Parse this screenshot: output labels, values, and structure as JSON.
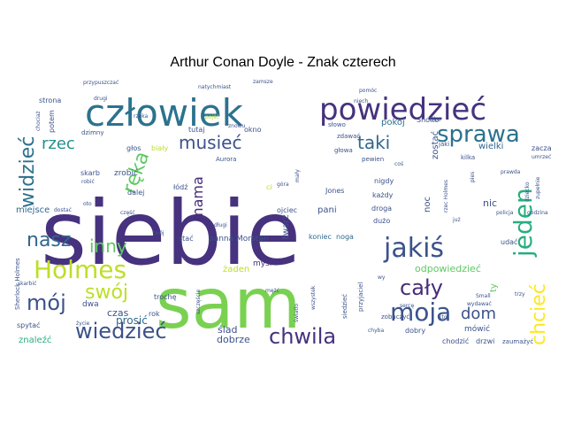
{
  "chart_data": {
    "type": "wordcloud",
    "title": "Arthur Conan Doyle - Znak czterech",
    "words": [
      {
        "text": "siebie",
        "size": 100,
        "color": "#46327e"
      },
      {
        "text": "sam",
        "size": 78,
        "color": "#7ad151"
      },
      {
        "text": "człowiek",
        "size": 42,
        "color": "#2c728e"
      },
      {
        "text": "powiedzieć",
        "size": 34,
        "color": "#46327e"
      },
      {
        "text": "sprawa",
        "size": 26,
        "color": "#2c728e"
      },
      {
        "text": "jakiś",
        "size": 30,
        "color": "#3b528b"
      },
      {
        "text": "Holmes",
        "size": 28,
        "color": "#bddf26"
      },
      {
        "text": "jeden",
        "size": 28,
        "color": "#27ad81"
      },
      {
        "text": "chcieć",
        "size": 22,
        "color": "#fde725"
      },
      {
        "text": "moja",
        "size": 28,
        "color": "#3b528b"
      },
      {
        "text": "cały",
        "size": 24,
        "color": "#472d7b"
      },
      {
        "text": "chwila",
        "size": 24,
        "color": "#46327e"
      },
      {
        "text": "wiedzieć",
        "size": 24,
        "color": "#3b528b"
      },
      {
        "text": "mój",
        "size": 24,
        "color": "#3b528b"
      },
      {
        "text": "swój",
        "size": 22,
        "color": "#bddf26"
      },
      {
        "text": "nasz",
        "size": 22,
        "color": "#31688e"
      },
      {
        "text": "inny",
        "size": 20,
        "color": "#5ec962"
      },
      {
        "text": "ręka",
        "size": 22,
        "color": "#5ec962"
      },
      {
        "text": "widzieć",
        "size": 22,
        "color": "#2c728e"
      },
      {
        "text": "rzec",
        "size": 18,
        "color": "#21918c"
      },
      {
        "text": "musieć",
        "size": 20,
        "color": "#3b528b"
      },
      {
        "text": "taki",
        "size": 20,
        "color": "#31688e"
      },
      {
        "text": "mama",
        "size": 16,
        "color": "#472d7b"
      },
      {
        "text": "dom",
        "size": 18,
        "color": "#3b528b"
      },
      {
        "text": "pokój",
        "size": 10,
        "color": "#2c728e"
      },
      {
        "text": "wielki",
        "size": 10,
        "color": "#31688e"
      },
      {
        "text": "prosić",
        "size": 12,
        "color": "#31688e"
      },
      {
        "text": "odpowiedzieć",
        "size": 11,
        "color": "#5ec962"
      },
      {
        "text": "czas",
        "size": 11,
        "color": "#3b528b"
      },
      {
        "text": "ślad",
        "size": 11,
        "color": "#3b528b"
      },
      {
        "text": "dobrze",
        "size": 11,
        "color": "#3b528b"
      },
      {
        "text": "znaleźć",
        "size": 10,
        "color": "#27ad81"
      },
      {
        "text": "miejsce",
        "size": 10,
        "color": "#31688e"
      },
      {
        "text": "zrobić",
        "size": 9,
        "color": "#3b528b"
      },
      {
        "text": "żaden",
        "size": 10,
        "color": "#bddf26"
      },
      {
        "text": "myśl",
        "size": 9,
        "color": "#46327e"
      },
      {
        "text": "twarz",
        "size": 10,
        "color": "#3b528b"
      },
      {
        "text": "panna Morstan",
        "size": 9,
        "color": "#3b528b"
      },
      {
        "text": "koniec",
        "size": 8,
        "color": "#31688e"
      },
      {
        "text": "noga",
        "size": 8,
        "color": "#31688e"
      },
      {
        "text": "pani",
        "size": 10,
        "color": "#3b528b"
      },
      {
        "text": "nic",
        "size": 11,
        "color": "#3b528b"
      },
      {
        "text": "noc",
        "size": 10,
        "color": "#3b528b"
      },
      {
        "text": "zostać",
        "size": 10,
        "color": "#3b528b"
      },
      {
        "text": "ty",
        "size": 10,
        "color": "#5ec962"
      },
      {
        "text": "mówić",
        "size": 9,
        "color": "#3b528b"
      },
      {
        "text": "dobry",
        "size": 8,
        "color": "#3b528b"
      },
      {
        "text": "chodzić",
        "size": 8,
        "color": "#3b528b"
      },
      {
        "text": "drzwi",
        "size": 8,
        "color": "#3b528b"
      },
      {
        "text": "zaczać",
        "size": 8,
        "color": "#3b528b"
      },
      {
        "text": "głos",
        "size": 8,
        "color": "#3b528b"
      },
      {
        "text": "biały",
        "size": 8,
        "color": "#bddf26"
      },
      {
        "text": "tutaj",
        "size": 8,
        "color": "#3b528b"
      },
      {
        "text": "okno",
        "size": 8,
        "color": "#3b528b"
      },
      {
        "text": "strona",
        "size": 8,
        "color": "#3b528b"
      },
      {
        "text": "potem",
        "size": 8,
        "color": "#3b528b"
      },
      {
        "text": "dzimny",
        "size": 7,
        "color": "#3b528b"
      },
      {
        "text": "słowo",
        "size": 7,
        "color": "#3b528b"
      },
      {
        "text": "zdawać",
        "size": 7,
        "color": "#3b528b"
      },
      {
        "text": "głowa",
        "size": 7,
        "color": "#3b528b"
      },
      {
        "text": "Sholto",
        "size": 8,
        "color": "#3b528b"
      },
      {
        "text": "nigdy",
        "size": 8,
        "color": "#3b528b"
      },
      {
        "text": "każdy",
        "size": 8,
        "color": "#3b528b"
      },
      {
        "text": "droga",
        "size": 8,
        "color": "#3b528b"
      },
      {
        "text": "dużo",
        "size": 8,
        "color": "#3b528b"
      },
      {
        "text": "ojciec",
        "size": 8,
        "color": "#3b528b"
      },
      {
        "text": "Jones",
        "size": 8,
        "color": "#3b528b"
      },
      {
        "text": "udać",
        "size": 8,
        "color": "#3b528b"
      },
      {
        "text": "dalej",
        "size": 8,
        "color": "#3b528b"
      },
      {
        "text": "łódź",
        "size": 8,
        "color": "#3b528b"
      },
      {
        "text": "skarb",
        "size": 8,
        "color": "#3b528b"
      },
      {
        "text": "dwa",
        "size": 9,
        "color": "#3b528b"
      },
      {
        "text": "trochę",
        "size": 8,
        "color": "#3b528b"
      },
      {
        "text": "rok",
        "size": 8,
        "color": "#3b528b"
      },
      {
        "text": "spytać",
        "size": 8,
        "color": "#3b528b"
      },
      {
        "text": "stać",
        "size": 8,
        "color": "#3b528b"
      },
      {
        "text": "Sherlock Holmes",
        "size": 7,
        "color": "#3b528b"
      },
      {
        "text": "kilka",
        "size": 7,
        "color": "#3b528b"
      },
      {
        "text": "jaki",
        "size": 7,
        "color": "#3b528b"
      },
      {
        "text": "oko",
        "size": 7,
        "color": "#3b528b"
      },
      {
        "text": "natychmiast",
        "size": 6,
        "color": "#3b528b"
      },
      {
        "text": "zamsze",
        "size": 6,
        "color": "#3b528b"
      },
      {
        "text": "przypuszczać",
        "size": 6,
        "color": "#3b528b"
      },
      {
        "text": "Aurora",
        "size": 7,
        "color": "#3b528b"
      },
      {
        "text": "zobaczyć",
        "size": 7,
        "color": "#3b528b"
      },
      {
        "text": "zaumażyć",
        "size": 7,
        "color": "#3b528b"
      },
      {
        "text": "przyjaciel",
        "size": 7,
        "color": "#3b528b"
      },
      {
        "text": "siedzieć",
        "size": 7,
        "color": "#3b528b"
      },
      {
        "text": "pewien",
        "size": 7,
        "color": "#3b528b"
      },
      {
        "text": "policja",
        "size": 6,
        "color": "#3b528b"
      },
      {
        "text": "prawda",
        "size": 6,
        "color": "#3b528b"
      },
      {
        "text": "część",
        "size": 6,
        "color": "#3b528b"
      },
      {
        "text": "długi",
        "size": 6,
        "color": "#3b528b"
      },
      {
        "text": "mały",
        "size": 6,
        "color": "#3b528b"
      },
      {
        "text": "chyba",
        "size": 6,
        "color": "#3b528b"
      },
      {
        "text": "życie",
        "size": 6,
        "color": "#3b528b"
      },
      {
        "text": "wszystek",
        "size": 6,
        "color": "#3b528b"
      },
      {
        "text": "kto",
        "size": 6,
        "color": "#3b528b"
      },
      {
        "text": "trzy",
        "size": 6,
        "color": "#3b528b"
      },
      {
        "text": "dostać",
        "size": 6,
        "color": "#3b528b"
      },
      {
        "text": "robić",
        "size": 6,
        "color": "#3b528b"
      },
      {
        "text": "skarbić",
        "size": 6,
        "color": "#3b528b"
      },
      {
        "text": "szczęście",
        "size": 6,
        "color": "#3b528b"
      },
      {
        "text": "chociaż",
        "size": 6,
        "color": "#3b528b"
      },
      {
        "text": "zupełnie",
        "size": 6,
        "color": "#3b528b"
      },
      {
        "text": "dziecko",
        "size": 6,
        "color": "#3b528b"
      },
      {
        "text": "światło",
        "size": 6,
        "color": "#3b528b"
      },
      {
        "text": "niech",
        "size": 6,
        "color": "#3b528b"
      },
      {
        "text": "pomóc",
        "size": 6,
        "color": "#3b528b"
      },
      {
        "text": "rzec Holmes",
        "size": 6,
        "color": "#3b528b"
      },
      {
        "text": "pies",
        "size": 6,
        "color": "#3b528b"
      },
      {
        "text": "Small",
        "size": 6,
        "color": "#3b528b"
      },
      {
        "text": "wydawać",
        "size": 6,
        "color": "#3b528b"
      },
      {
        "text": "ci",
        "size": 8,
        "color": "#bddf26"
      },
      {
        "text": "już",
        "size": 6,
        "color": "#3b528b"
      },
      {
        "text": "drugi",
        "size": 6,
        "color": "#3b528b"
      },
      {
        "text": "rzeka",
        "size": 6,
        "color": "#3b528b"
      },
      {
        "text": "pojść",
        "size": 6,
        "color": "#bddf26"
      },
      {
        "text": "znowu",
        "size": 6,
        "color": "#3b528b"
      },
      {
        "text": "oto",
        "size": 6,
        "color": "#3b528b"
      },
      {
        "text": "mężć",
        "size": 6,
        "color": "#3b528b"
      },
      {
        "text": "góra",
        "size": 6,
        "color": "#3b528b"
      },
      {
        "text": "godzina",
        "size": 6,
        "color": "#3b528b"
      },
      {
        "text": "umrzeć",
        "size": 6,
        "color": "#3b528b"
      },
      {
        "text": "twój",
        "size": 6,
        "color": "#3b528b"
      },
      {
        "text": "sercę",
        "size": 6,
        "color": "#3b528b"
      },
      {
        "text": "coś",
        "size": 6,
        "color": "#3b528b"
      },
      {
        "text": "wy",
        "size": 6,
        "color": "#3b528b"
      }
    ]
  }
}
